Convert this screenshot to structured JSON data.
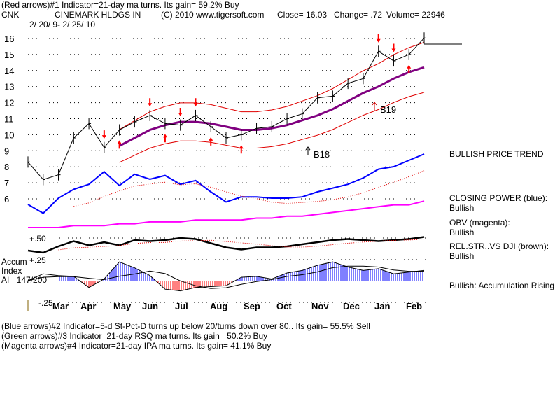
{
  "header": {
    "line1": "(Red arrows)#1 Indicator=21-day ma turns. Its gain= 59.2% Buy",
    "ticker": "CNK",
    "company": "CINEMARK HLDGS IN",
    "copyright": "(C) 2010 www.tigersoft.com",
    "close": "Close=  16.03",
    "change": "Change= .72",
    "volume": "Volume= 22946",
    "date_range": "2/ 20/ 9- 2/ 25/ 10"
  },
  "right_labels": {
    "trend": "BULLISH PRICE TREND",
    "cp": "CLOSING POWER (blue):",
    "cp_val": "Bullish",
    "obv": "OBV (magenta):",
    "obv_val": "Bullish",
    "rs": "REL.STR..VS DJI (brown):",
    "rs_val": "Bullish",
    "accum": "Bullish: Accumulation Rising"
  },
  "accum_label": {
    "l1": "Accum",
    "l2": "Index",
    "l3": "AI= 147/200"
  },
  "footer": {
    "l1": "(Blue arrows)#2 Indicator=5-d St-Pct-D turns up below 20/turns down over 80.. Its gain= 55.5% Sell",
    "l2": "(Green arrows)#3 Indicator=21-day RSQ ma turns. Its gain= 50.2% Buy",
    "l3": "(Magenta arrows)#4 Indicator=21-day IPA ma turns. Its gain= 41.1% Buy"
  },
  "chart_data": {
    "type": "line",
    "price_ticks": [
      "16",
      "15",
      "14",
      "13",
      "12",
      "11",
      "10",
      "9",
      "8",
      "7",
      "6"
    ],
    "indicator_ticks": [
      "+.50",
      "+.25",
      "-.25"
    ],
    "month_labels": [
      "Mar",
      "Apr",
      "May",
      "Jun",
      "Jul",
      "Aug",
      "Sep",
      "Oct",
      "Nov",
      "Dec",
      "Jan",
      "Feb"
    ],
    "x": [
      "2009-02-20",
      "2009-03-06",
      "2009-03-20",
      "2009-04-03",
      "2009-04-17",
      "2009-05-01",
      "2009-05-15",
      "2009-05-29",
      "2009-06-12",
      "2009-06-26",
      "2009-07-10",
      "2009-07-24",
      "2009-08-07",
      "2009-08-21",
      "2009-09-04",
      "2009-09-18",
      "2009-10-02",
      "2009-10-16",
      "2009-10-30",
      "2009-11-13",
      "2009-11-27",
      "2009-12-11",
      "2009-12-24",
      "2010-01-08",
      "2010-01-22",
      "2010-02-05",
      "2010-02-25"
    ],
    "close": [
      8.3,
      7.2,
      7.5,
      9.8,
      10.7,
      9.2,
      10.3,
      10.8,
      11.2,
      10.7,
      10.6,
      11.2,
      10.5,
      9.8,
      10.0,
      10.4,
      10.5,
      11.0,
      11.3,
      12.3,
      12.4,
      13.2,
      13.5,
      15.2,
      14.6,
      15.0,
      16.03
    ],
    "ma21": [
      null,
      null,
      null,
      null,
      null,
      null,
      9.3,
      9.8,
      10.3,
      10.6,
      10.8,
      10.8,
      10.7,
      10.5,
      10.3,
      10.3,
      10.4,
      10.6,
      10.9,
      11.2,
      11.6,
      12.1,
      12.6,
      13.0,
      13.5,
      13.9,
      14.2
    ],
    "band_pct": 11,
    "closing_power": [
      5.0,
      4.3,
      5.5,
      6.2,
      6.6,
      7.6,
      6.5,
      7.4,
      7.0,
      7.3,
      6.6,
      6.9,
      6.0,
      5.2,
      5.6,
      5.6,
      5.5,
      5.5,
      5.6,
      6.0,
      6.3,
      6.6,
      7.1,
      7.8,
      8.0,
      8.5,
      9.0
    ],
    "obv": [
      4.6,
      4.6,
      4.6,
      4.7,
      4.7,
      4.7,
      4.8,
      4.8,
      4.9,
      4.9,
      4.9,
      5.0,
      5.0,
      5.0,
      5.0,
      5.1,
      5.1,
      5.2,
      5.2,
      5.3,
      5.4,
      5.5,
      5.6,
      5.7,
      5.8,
      5.8,
      6.0
    ],
    "rel_strength": [
      0.38,
      0.36,
      0.42,
      0.47,
      0.43,
      0.46,
      0.43,
      0.48,
      0.47,
      0.48,
      0.5,
      0.49,
      0.45,
      0.41,
      0.39,
      0.41,
      0.41,
      0.42,
      0.44,
      0.46,
      0.48,
      0.49,
      0.48,
      0.47,
      0.48,
      0.49,
      0.51
    ],
    "accum_index": [
      0.0,
      0.08,
      0.06,
      0.05,
      -0.08,
      0.02,
      0.22,
      0.15,
      0.06,
      -0.1,
      -0.12,
      -0.08,
      -0.07,
      -0.06,
      0.04,
      0.05,
      0.02,
      0.09,
      0.12,
      0.18,
      0.22,
      0.16,
      0.12,
      0.14,
      0.08,
      0.1,
      0.12
    ],
    "arrows": [
      {
        "i": 5,
        "dir": "down"
      },
      {
        "i": 6,
        "dir": "up"
      },
      {
        "i": 8,
        "dir": "down"
      },
      {
        "i": 9,
        "dir": "up"
      },
      {
        "i": 10,
        "dir": "down"
      },
      {
        "i": 11,
        "dir": "down"
      },
      {
        "i": 12,
        "dir": "up"
      },
      {
        "i": 14,
        "dir": "up"
      },
      {
        "i": 23,
        "dir": "down"
      },
      {
        "i": 24,
        "dir": "down"
      },
      {
        "i": 25,
        "dir": "up"
      }
    ],
    "signals": [
      "B18",
      "B19"
    ]
  }
}
